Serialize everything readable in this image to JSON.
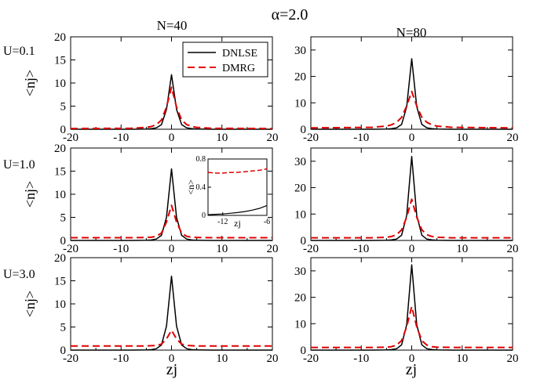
{
  "figure": {
    "title": "α=2.0",
    "columns": [
      "N=40",
      "N=80"
    ],
    "rows": [
      "U=0.1",
      "U=1.0",
      "U=3.0"
    ],
    "ylabel": "<nj>",
    "xlabel": "zj"
  },
  "colors": {
    "dnlse": "#000000",
    "dmrg": "#e00000",
    "frame": "#000000"
  },
  "chart_data": [
    {
      "type": "line",
      "panel": "U=0.1, N=40",
      "xlim": [
        -20,
        20
      ],
      "ylim": [
        0,
        20
      ],
      "xticks": [
        -20,
        -10,
        0,
        10,
        20
      ],
      "yticks": [
        0,
        5,
        10,
        15,
        20
      ],
      "legend": {
        "position": "top-right",
        "entries": [
          "DNLSE",
          "DMRG"
        ]
      },
      "series": [
        {
          "name": "DNLSE",
          "x": [
            -20,
            -8,
            -5,
            -4,
            -3,
            -2,
            -1,
            0,
            1,
            2,
            3,
            4,
            5,
            8,
            20
          ],
          "y": [
            0,
            0,
            0.05,
            0.12,
            0.3,
            1.0,
            4.3,
            11.8,
            4.3,
            1.0,
            0.3,
            0.12,
            0.05,
            0,
            0
          ]
        },
        {
          "name": "DMRG",
          "x": [
            -20,
            -8,
            -5,
            -4,
            -3,
            -2,
            -1,
            0,
            1,
            2,
            3,
            4,
            5,
            8,
            20
          ],
          "y": [
            0.15,
            0.2,
            0.4,
            0.6,
            1.0,
            2.0,
            4.8,
            9.1,
            4.8,
            2.0,
            1.0,
            0.6,
            0.4,
            0.2,
            0.15
          ]
        }
      ]
    },
    {
      "type": "line",
      "panel": "U=0.1, N=80",
      "xlim": [
        -20,
        20
      ],
      "ylim": [
        0,
        35
      ],
      "xticks": [
        -20,
        -10,
        0,
        10,
        20
      ],
      "yticks": [
        0,
        10,
        20,
        30
      ],
      "series": [
        {
          "name": "DNLSE",
          "x": [
            -20,
            -8,
            -5,
            -4,
            -3,
            -2,
            -1,
            0,
            1,
            2,
            3,
            4,
            5,
            8,
            20
          ],
          "y": [
            0,
            0,
            0.1,
            0.2,
            0.5,
            1.8,
            8.5,
            26.7,
            8.5,
            1.8,
            0.5,
            0.2,
            0.1,
            0,
            0
          ]
        },
        {
          "name": "DMRG",
          "x": [
            -20,
            -8,
            -5,
            -4,
            -3,
            -2,
            -1,
            0,
            1,
            2,
            3,
            4,
            5,
            8,
            20
          ],
          "y": [
            0.5,
            0.7,
            1.2,
            1.7,
            2.6,
            4.5,
            8.8,
            14.3,
            8.8,
            4.5,
            2.6,
            1.7,
            1.2,
            0.7,
            0.5
          ]
        }
      ]
    },
    {
      "type": "line",
      "panel": "U=1.0, N=40",
      "xlim": [
        -20,
        20
      ],
      "ylim": [
        0,
        20
      ],
      "xticks": [
        -20,
        -10,
        0,
        10,
        20
      ],
      "yticks": [
        0,
        5,
        10,
        15,
        20
      ],
      "series": [
        {
          "name": "DNLSE",
          "x": [
            -20,
            -8,
            -5,
            -4,
            -3,
            -2,
            -1,
            0,
            1,
            2,
            3,
            4,
            5,
            8,
            20
          ],
          "y": [
            0,
            0,
            0.05,
            0.1,
            0.3,
            1.1,
            5.0,
            15.5,
            5.0,
            1.1,
            0.3,
            0.1,
            0.05,
            0,
            0
          ]
        },
        {
          "name": "DMRG",
          "x": [
            -20,
            -8,
            -5,
            -4,
            -3,
            -2,
            -1,
            0,
            1,
            2,
            3,
            4,
            5,
            8,
            20
          ],
          "y": [
            0.6,
            0.6,
            0.65,
            0.7,
            0.9,
            1.6,
            4.0,
            7.6,
            4.0,
            1.6,
            0.9,
            0.7,
            0.65,
            0.6,
            0.6
          ]
        }
      ],
      "inset": {
        "xlim": [
          -14,
          -6
        ],
        "ylim": [
          0,
          0.8
        ],
        "xticks": [
          -12,
          -6
        ],
        "yticks": [
          0,
          0.4,
          0.8
        ],
        "xtick_labels": [
          "-12",
          "-6"
        ],
        "ytick_labels": [
          "0",
          "0.4",
          "0.8"
        ],
        "ylabel": "<n>",
        "xlabel": "zj",
        "series": [
          {
            "name": "DNLSE",
            "x": [
              -14,
              -13,
              -12,
              -11,
              -10,
              -9,
              -8,
              -7,
              -6
            ],
            "y": [
              0.01,
              0.015,
              0.02,
              0.03,
              0.04,
              0.055,
              0.075,
              0.1,
              0.14
            ]
          },
          {
            "name": "DMRG",
            "x": [
              -14,
              -13,
              -12,
              -11,
              -10,
              -9,
              -8,
              -7,
              -6
            ],
            "y": [
              0.61,
              0.6,
              0.6,
              0.61,
              0.61,
              0.62,
              0.63,
              0.64,
              0.66
            ]
          }
        ]
      }
    },
    {
      "type": "line",
      "panel": "U=1.0, N=80",
      "xlim": [
        -20,
        20
      ],
      "ylim": [
        0,
        35
      ],
      "xticks": [
        -20,
        -10,
        0,
        10,
        20
      ],
      "yticks": [
        0,
        10,
        20,
        30
      ],
      "series": [
        {
          "name": "DNLSE",
          "x": [
            -20,
            -8,
            -5,
            -4,
            -3,
            -2,
            -1,
            0,
            1,
            2,
            3,
            4,
            5,
            8,
            20
          ],
          "y": [
            0,
            0,
            0.1,
            0.2,
            0.5,
            2.0,
            9.5,
            31.8,
            9.5,
            2.0,
            0.5,
            0.2,
            0.1,
            0,
            0
          ]
        },
        {
          "name": "DMRG",
          "x": [
            -20,
            -8,
            -5,
            -4,
            -3,
            -2,
            -1,
            0,
            1,
            2,
            3,
            4,
            5,
            8,
            20
          ],
          "y": [
            1.0,
            1.0,
            1.2,
            1.5,
            2.2,
            4.0,
            8.8,
            15.6,
            8.8,
            4.0,
            2.2,
            1.5,
            1.2,
            1.0,
            1.0
          ]
        }
      ]
    },
    {
      "type": "line",
      "panel": "U=3.0, N=40",
      "xlim": [
        -20,
        20
      ],
      "ylim": [
        0,
        20
      ],
      "xticks": [
        -20,
        -10,
        0,
        10,
        20
      ],
      "yticks": [
        0,
        5,
        10,
        15,
        20
      ],
      "series": [
        {
          "name": "DNLSE",
          "x": [
            -20,
            -8,
            -5,
            -4,
            -3,
            -2,
            -1,
            0,
            1,
            2,
            3,
            4,
            5,
            8,
            20
          ],
          "y": [
            0,
            0,
            0.05,
            0.1,
            0.3,
            1.1,
            5.2,
            16.0,
            5.2,
            1.1,
            0.3,
            0.1,
            0.05,
            0,
            0
          ]
        },
        {
          "name": "DMRG",
          "x": [
            -20,
            -8,
            -5,
            -4,
            -3,
            -2,
            -1,
            0,
            1,
            2,
            3,
            4,
            5,
            8,
            20
          ],
          "y": [
            0.9,
            0.9,
            0.9,
            0.95,
            1.0,
            1.3,
            2.4,
            4.3,
            2.4,
            1.3,
            1.0,
            0.95,
            0.9,
            0.9,
            0.9
          ]
        }
      ]
    },
    {
      "type": "line",
      "panel": "U=3.0, N=80",
      "xlim": [
        -20,
        20
      ],
      "ylim": [
        0,
        35
      ],
      "xticks": [
        -20,
        -10,
        0,
        10,
        20
      ],
      "yticks": [
        0,
        10,
        20,
        30
      ],
      "series": [
        {
          "name": "DNLSE",
          "x": [
            -20,
            -8,
            -5,
            -4,
            -3,
            -2,
            -1,
            0,
            1,
            2,
            3,
            4,
            5,
            8,
            20
          ],
          "y": [
            0,
            0,
            0.1,
            0.2,
            0.5,
            2.0,
            9.6,
            32.3,
            9.6,
            2.0,
            0.5,
            0.2,
            0.1,
            0,
            0
          ]
        },
        {
          "name": "DMRG",
          "x": [
            -20,
            -8,
            -5,
            -4,
            -3,
            -2,
            -1,
            0,
            1,
            2,
            3,
            4,
            5,
            8,
            20
          ],
          "y": [
            1.0,
            1.0,
            1.1,
            1.3,
            1.9,
            3.6,
            8.8,
            16.5,
            8.8,
            3.6,
            1.9,
            1.3,
            1.1,
            1.0,
            1.0
          ]
        }
      ]
    }
  ]
}
